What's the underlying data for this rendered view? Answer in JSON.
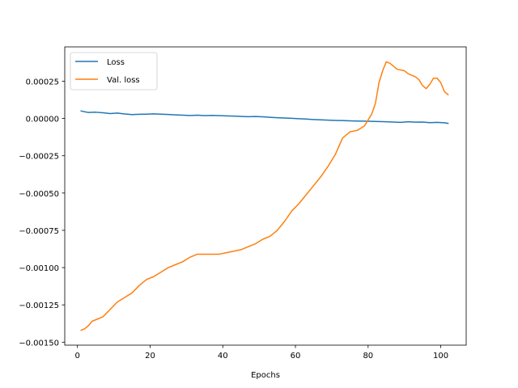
{
  "chart_data": {
    "type": "line",
    "title": "",
    "xlabel": "Epochs",
    "ylabel": "",
    "xlim": [
      -3.5,
      107
    ],
    "ylim": [
      -0.00152,
      0.00048
    ],
    "xticks": [
      0,
      20,
      40,
      60,
      80,
      100
    ],
    "xtick_labels": [
      "0",
      "20",
      "40",
      "60",
      "80",
      "100"
    ],
    "yticks": [
      -0.0015,
      -0.00125,
      -0.001,
      -0.00075,
      -0.0005,
      -0.00025,
      0.0,
      0.00025
    ],
    "ytick_labels": [
      "−0.00150",
      "−0.00125",
      "−0.00100",
      "−0.00075",
      "−0.00050",
      "−0.00025",
      "0.00000",
      "0.00025"
    ],
    "grid": false,
    "legend_position": "top-left",
    "series": [
      {
        "name": "Loss",
        "color": "#1f77b4",
        "x": [
          1,
          3,
          5,
          7,
          9,
          11,
          13,
          15,
          17,
          19,
          21,
          23,
          25,
          27,
          29,
          31,
          33,
          35,
          37,
          39,
          41,
          43,
          45,
          47,
          49,
          51,
          53,
          55,
          57,
          59,
          61,
          63,
          65,
          67,
          69,
          71,
          73,
          75,
          77,
          79,
          81,
          83,
          85,
          87,
          89,
          91,
          93,
          95,
          97,
          99,
          101,
          102
        ],
        "y": [
          5e-05,
          4e-05,
          4.2e-05,
          3.8e-05,
          3.3e-05,
          3.6e-05,
          3e-05,
          2.6e-05,
          2.8e-05,
          2.9e-05,
          3.1e-05,
          2.9e-05,
          2.7e-05,
          2.4e-05,
          2.2e-05,
          2e-05,
          2.2e-05,
          1.9e-05,
          2.1e-05,
          1.9e-05,
          1.7e-05,
          1.6e-05,
          1.4e-05,
          1.2e-05,
          1.3e-05,
          1.1e-05,
          8e-06,
          5e-06,
          3e-06,
          1e-06,
          -2e-06,
          -4e-06,
          -7e-06,
          -9e-06,
          -1.1e-05,
          -1.3e-05,
          -1.4e-05,
          -1.6e-05,
          -1.7e-05,
          -1.8e-05,
          -1.9e-05,
          -2.1e-05,
          -2.2e-05,
          -2.4e-05,
          -2.6e-05,
          -2.2e-05,
          -2.5e-05,
          -2.4e-05,
          -2.8e-05,
          -2.6e-05,
          -2.9e-05,
          -3.3e-05
        ]
      },
      {
        "name": "Val. loss",
        "color": "#ff7f0e",
        "x": [
          1,
          2,
          3,
          4,
          5,
          7,
          9,
          11,
          13,
          15,
          17,
          19,
          21,
          23,
          25,
          27,
          29,
          31,
          33,
          35,
          37,
          39,
          41,
          43,
          45,
          47,
          49,
          51,
          53,
          55,
          57,
          59,
          61,
          63,
          65,
          67,
          69,
          71,
          73,
          75,
          77,
          79,
          81,
          82,
          83,
          84,
          85,
          86,
          87,
          88,
          90,
          91,
          92,
          93,
          94,
          95,
          96,
          97,
          98,
          99,
          100,
          101,
          102
        ],
        "y": [
          -0.00142,
          -0.00141,
          -0.00139,
          -0.00136,
          -0.00135,
          -0.00133,
          -0.00128,
          -0.00123,
          -0.0012,
          -0.00117,
          -0.00112,
          -0.00108,
          -0.00106,
          -0.00103,
          -0.001,
          -0.00098,
          -0.00096,
          -0.00093,
          -0.00091,
          -0.00091,
          -0.00091,
          -0.00091,
          -0.0009,
          -0.00089,
          -0.00088,
          -0.00086,
          -0.00084,
          -0.00081,
          -0.00079,
          -0.00075,
          -0.00069,
          -0.00062,
          -0.00057,
          -0.00051,
          -0.00045,
          -0.00039,
          -0.00032,
          -0.00024,
          -0.00013,
          -9e-05,
          -8e-05,
          -5e-05,
          3e-05,
          0.0001,
          0.00024,
          0.00032,
          0.00038,
          0.00037,
          0.00035,
          0.00033,
          0.00032,
          0.0003,
          0.00029,
          0.00028,
          0.00026,
          0.00022,
          0.0002,
          0.00023,
          0.00027,
          0.00027,
          0.00024,
          0.00018,
          0.00016
        ]
      }
    ]
  }
}
